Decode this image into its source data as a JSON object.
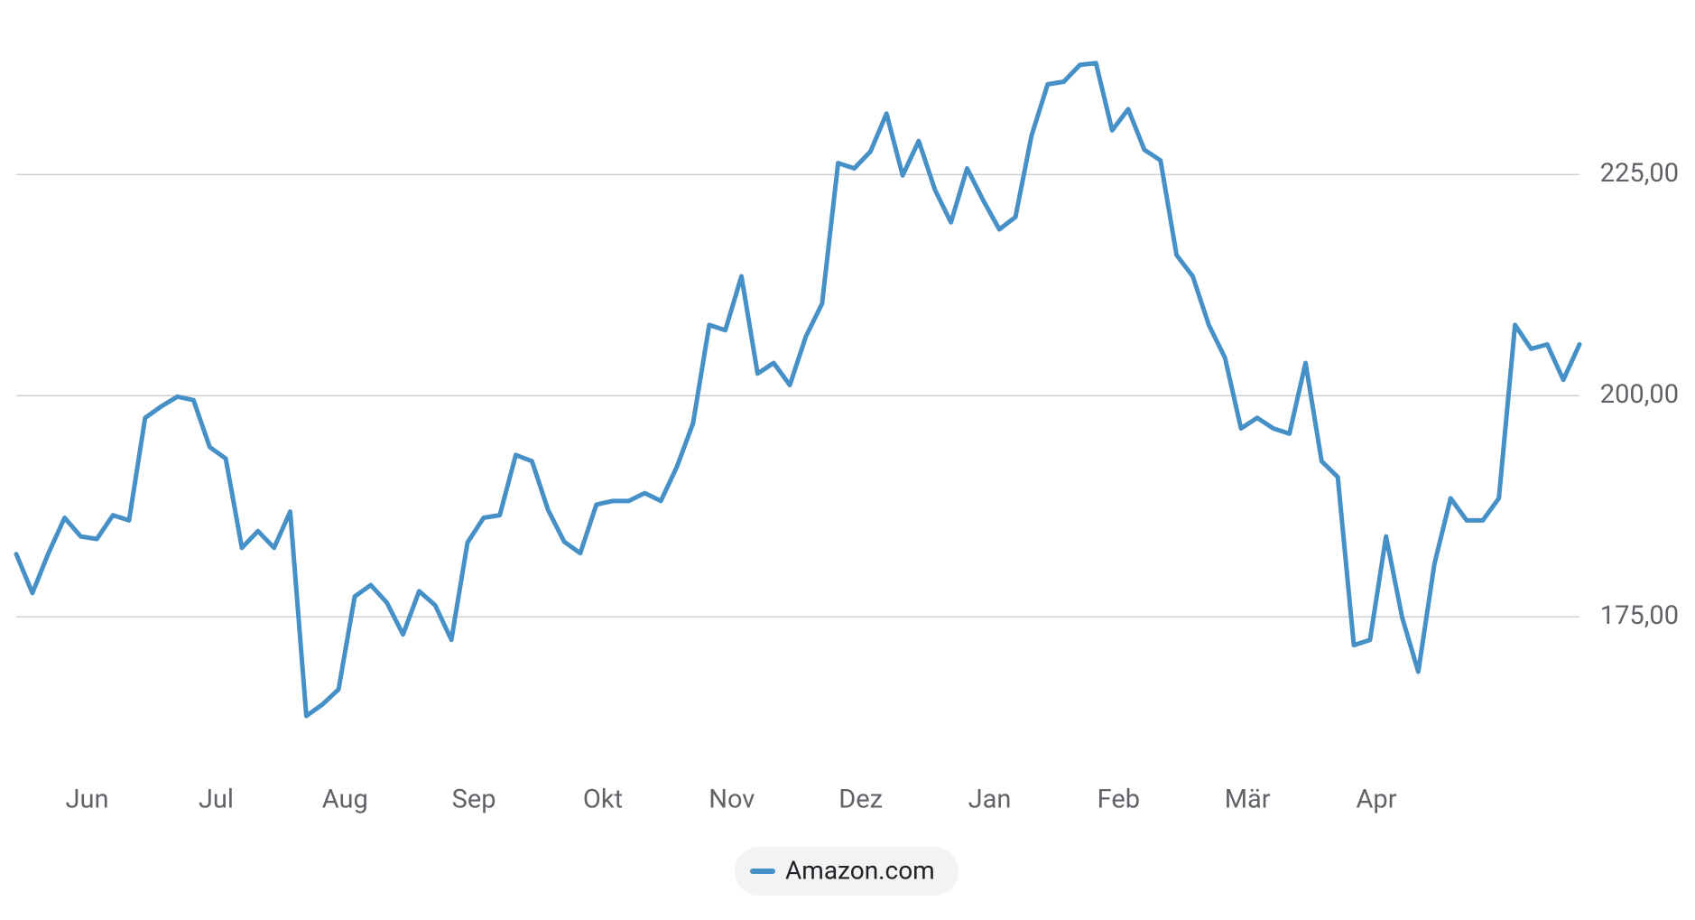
{
  "chart_data": {
    "type": "line",
    "categories": [
      null,
      null,
      null,
      null,
      "Jun",
      null,
      null,
      null,
      null,
      null,
      null,
      null,
      "Jul",
      null,
      null,
      null,
      null,
      null,
      null,
      null,
      "Aug",
      null,
      null,
      null,
      null,
      null,
      null,
      null,
      "Sep",
      null,
      null,
      null,
      null,
      null,
      null,
      null,
      "Okt",
      null,
      null,
      null,
      null,
      null,
      null,
      null,
      "Nov",
      null,
      null,
      null,
      null,
      null,
      null,
      null,
      "Dez",
      null,
      null,
      null,
      null,
      null,
      null,
      null,
      "Jan",
      null,
      null,
      null,
      null,
      null,
      null,
      null,
      "Feb",
      null,
      null,
      null,
      null,
      null,
      null,
      null,
      "Mär",
      null,
      null,
      null,
      null,
      null,
      null,
      null,
      "Apr",
      null,
      null,
      null,
      null,
      null,
      null,
      null,
      null,
      null,
      null,
      null,
      null,
      null
    ],
    "series": [
      {
        "name": "Amazon.com",
        "color": "#4690c8",
        "values": [
          182.1,
          177.7,
          182.2,
          186.2,
          184.1,
          183.8,
          186.5,
          185.9,
          197.5,
          198.8,
          199.9,
          199.5,
          194.2,
          192.9,
          182.8,
          184.7,
          182.8,
          186.9,
          163.8,
          165.1,
          166.8,
          177.3,
          178.6,
          176.6,
          173.0,
          177.9,
          176.3,
          172.4,
          183.4,
          186.2,
          186.5,
          193.3,
          192.6,
          187.1,
          183.5,
          182.2,
          187.7,
          188.1,
          188.1,
          189.0,
          188.1,
          192.0,
          196.9,
          208.0,
          207.4,
          213.5,
          202.5,
          203.7,
          201.2,
          206.7,
          210.4,
          226.3,
          225.7,
          227.6,
          231.9,
          224.9,
          228.8,
          223.3,
          219.6,
          225.7,
          222.1,
          218.8,
          220.2,
          229.4,
          235.2,
          235.5,
          237.4,
          237.6,
          230.0,
          232.4,
          227.8,
          226.6,
          215.9,
          213.5,
          208.0,
          204.3,
          196.3,
          197.5,
          196.3,
          195.7,
          203.7,
          192.6,
          190.8,
          171.8,
          172.4,
          184.1,
          174.9,
          168.8,
          181.0,
          188.4,
          185.9,
          185.9,
          188.4,
          208.0,
          205.3,
          205.8,
          201.8,
          205.8
        ]
      }
    ],
    "ylim": [
      159,
      243
    ],
    "yticks": [
      {
        "value": 175,
        "label": "175,00"
      },
      {
        "value": 200,
        "label": "200,00"
      },
      {
        "value": 225,
        "label": "225,00"
      }
    ],
    "grid": true
  }
}
